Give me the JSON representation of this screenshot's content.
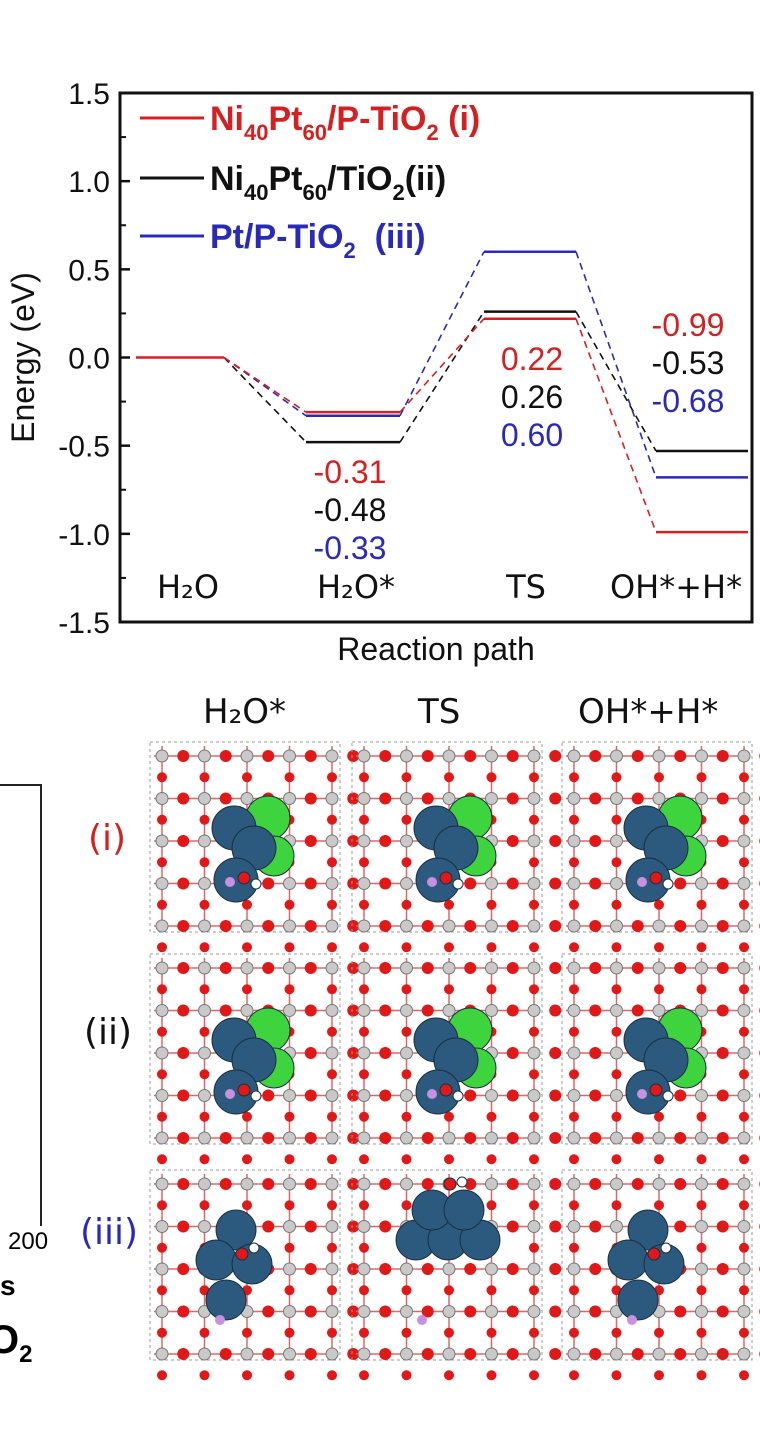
{
  "chart_data": {
    "type": "line",
    "ylabel": "Energy (eV)",
    "xlabel": "Reaction path",
    "ylim": [
      -1.5,
      1.5
    ],
    "yticks": [
      "1.5",
      "1.0",
      "0.5",
      "0.0",
      "-0.5",
      "-1.0",
      "-1.5"
    ],
    "ytick_values": [
      1.5,
      1.0,
      0.5,
      0.0,
      -0.5,
      -1.0,
      -1.5
    ],
    "categories": [
      "H₂O",
      "H₂O*",
      "TS",
      "OH*+H*"
    ],
    "legend_placement": "top-left",
    "series": [
      {
        "name": "Ni40Pt60/P-TiO2 (i)",
        "legend_main": "Ni",
        "legend_sub1": "40",
        "legend_mid": "Pt",
        "legend_sub2": "60",
        "legend_rest": "/P-TiO",
        "legend_sub3": "2",
        "legend_tag": " (i)",
        "color": "#d42020",
        "values": [
          0.0,
          -0.31,
          0.22,
          -0.99
        ]
      },
      {
        "name": "Ni40Pt60/TiO2 (ii)",
        "legend_main": "Ni",
        "legend_sub1": "40",
        "legend_mid": "Pt",
        "legend_sub2": "60",
        "legend_rest": "/TiO",
        "legend_sub3": "2",
        "legend_tag": "(ii)",
        "color": "#111111",
        "values": [
          0.0,
          -0.48,
          0.26,
          -0.53
        ]
      },
      {
        "name": "Pt/P-TiO2 (iii)",
        "legend_main": "Pt/P-TiO",
        "legend_sub3": "2",
        "legend_tag": "(iii)",
        "color": "#2a2ab8",
        "values": [
          0.0,
          -0.33,
          0.6,
          -0.68
        ]
      }
    ],
    "data_labels": {
      "h2o_star": [
        "-0.31",
        "-0.48",
        "-0.33"
      ],
      "ts": [
        "0.22",
        "0.26",
        "0.60"
      ],
      "oh_h": [
        "-0.99",
        "-0.53",
        "-0.68"
      ]
    }
  },
  "structures": {
    "column_labels": [
      "H₂O*",
      "TS",
      "OH*+H*"
    ],
    "row_labels": [
      "(i)",
      "(ii)",
      "(iii)"
    ],
    "row_colors": [
      "#d42020",
      "#111111",
      "#2a2ab8"
    ]
  },
  "left_fragment": {
    "tick": "200",
    "text1": "s",
    "text2": "O",
    "text2_sub": "2"
  },
  "colors": {
    "pt_atom": "#2b5a7e",
    "ni_atom": "#3ed43e",
    "oxygen": "#e01818",
    "titanium": "#c9c9c9",
    "phosphorus": "#c890e0",
    "hydrogen": "#ffffff"
  }
}
